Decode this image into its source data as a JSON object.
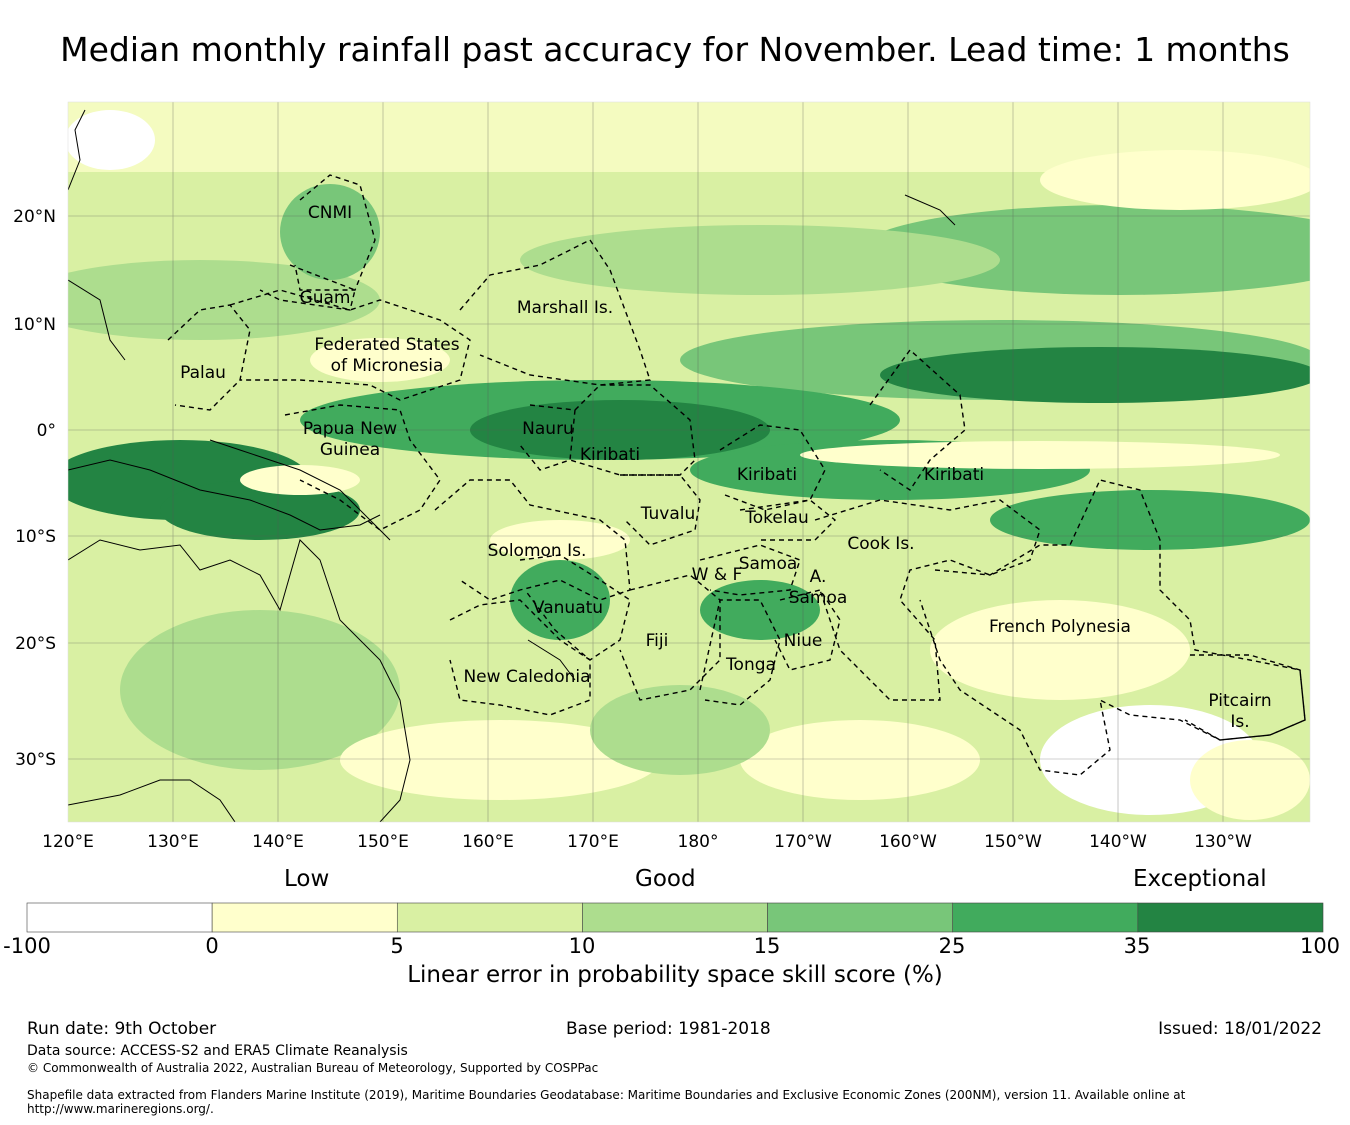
{
  "title": "Median monthly rainfall past accuracy for November. Lead time: 1 months",
  "map": {
    "lon_labels": [
      "120°E",
      "130°E",
      "140°E",
      "150°E",
      "160°E",
      "170°E",
      "180°",
      "170°W",
      "160°W",
      "150°W",
      "140°W",
      "130°W"
    ],
    "lat_labels": [
      "20°N",
      "10°N",
      "0°",
      "10°S",
      "20°S",
      "30°S"
    ],
    "regions": [
      "CNMI",
      "Guam",
      "Marshall Is.",
      "Palau",
      "Federated States",
      "of Micronesia",
      "Papua New",
      "Guinea",
      "Nauru",
      "Kiribati",
      "Kiribati",
      "Kiribati",
      "Tuvalu",
      "Tokelau",
      "Solomon Is.",
      "Samoa",
      "W & F",
      "A.",
      "Samoa",
      "Cook Is.",
      "Vanuatu",
      "Fiji",
      "Niue",
      "Tonga",
      "French Polynesia",
      "New Caledonia",
      "Pitcairn",
      "Is."
    ]
  },
  "colorbar": {
    "category_labels": [
      "Low",
      "Good",
      "Exceptional"
    ],
    "ticks": [
      "-100",
      "0",
      "5",
      "10",
      "15",
      "25",
      "35",
      "100"
    ],
    "colors": [
      "#ffffff",
      "#ffffcc",
      "#d9f0a3",
      "#addd8e",
      "#78c679",
      "#41ab5d",
      "#238443"
    ],
    "label": "Linear error in probability space skill score (%)"
  },
  "footer": {
    "run_date": "Run date: 9th October",
    "base_period": "Base period: 1981-2018",
    "issued": "Issued: 18/01/2022",
    "data_source": "Data source: ACCESS-S2 and ERA5 Climate Reanalysis",
    "copyright": "© Commonwealth of Australia 2022, Australian Bureau of Meteorology, Supported by COSPPac",
    "shapefile_1": "Shapefile data extracted from Flanders Marine Institute (2019), Maritime Boundaries Geodatabase: Maritime Boundaries and Exclusive Economic Zones (200NM), version 11. Available online at",
    "shapefile_2": "http://www.marineregions.org/."
  }
}
